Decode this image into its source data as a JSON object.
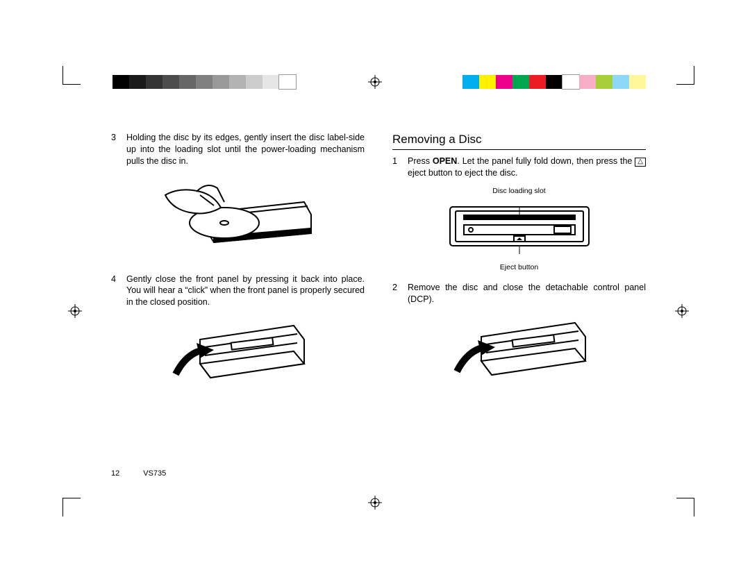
{
  "page_number": "12",
  "model": "VS735",
  "left_column": {
    "step3": {
      "num": "3",
      "text": "Holding the disc by its edges, gently insert the disc label-side up into the loading slot until the power-loading mechanism pulls the disc in."
    },
    "step4": {
      "num": "4",
      "text": "Gently close the front panel by pressing it back into place. You will hear a “click” when the front panel is properly secured in the closed position."
    }
  },
  "right_column": {
    "title": "Removing a Disc",
    "step1": {
      "num": "1",
      "text_a": "Press ",
      "bold": "OPEN",
      "text_b": ". Let the panel fully fold down, then press the ",
      "symbol": "△",
      "text_c": " eject button to eject the disc."
    },
    "callout_top": "Disc loading slot",
    "callout_bottom": "Eject button",
    "step2": {
      "num": "2",
      "text": "Remove the disc and close the detachable control panel (DCP)."
    }
  },
  "colorbar_gray": [
    "#000000",
    "#1a1a1a",
    "#333333",
    "#4d4d4d",
    "#666666",
    "#808080",
    "#999999",
    "#b3b3b3",
    "#cccccc",
    "#e6e6e6",
    "#ffffff"
  ],
  "colorbar_color": [
    "#00aeef",
    "#fff200",
    "#ec008c",
    "#00a651",
    "#ed1c24",
    "#000000",
    "#ffffff",
    "#f7adc6",
    "#a6ce39",
    "#8dd7f7",
    "#fff799"
  ],
  "doc": {
    "background_color": "#ffffff",
    "text_color": "#000000",
    "body_fontsize": 12.5,
    "title_fontsize": 17,
    "callout_fontsize": 10.5,
    "footer_fontsize": 11
  }
}
